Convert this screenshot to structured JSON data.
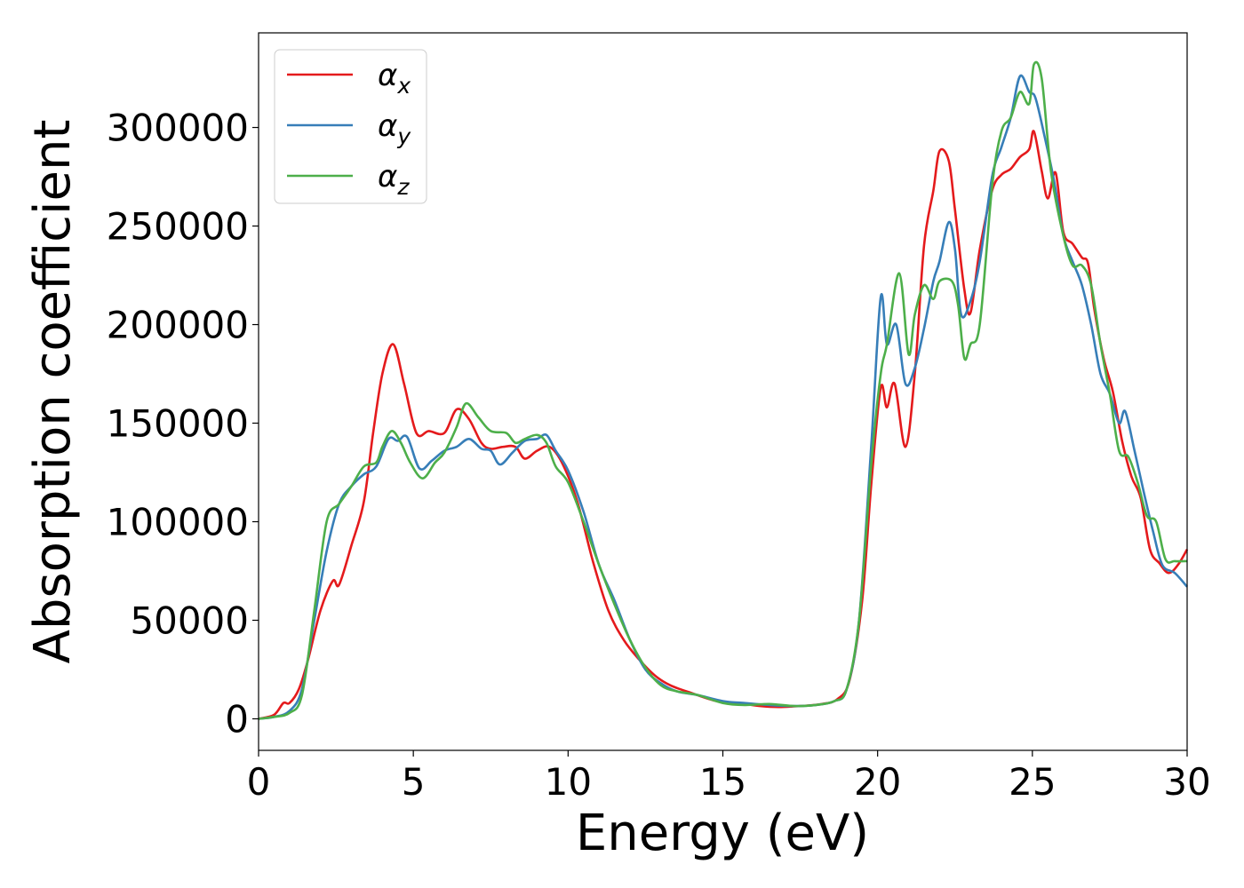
{
  "chart_data": {
    "type": "line",
    "xlabel": "Energy (eV)",
    "ylabel": "Absorption coefficient",
    "xlim": [
      0,
      30
    ],
    "ylim": [
      -16000,
      348000
    ],
    "x_ticks": [
      0,
      5,
      10,
      15,
      20,
      25,
      30
    ],
    "y_ticks": [
      0,
      50000,
      100000,
      150000,
      200000,
      250000,
      300000
    ],
    "grid": false,
    "legend_position": "top-left",
    "series": [
      {
        "name": "αx",
        "legend_main": "α",
        "legend_sub": "x",
        "color": "#e41a1c",
        "points": [
          [
            0,
            0
          ],
          [
            0.5,
            2000
          ],
          [
            0.8,
            8000
          ],
          [
            1.0,
            8000
          ],
          [
            1.3,
            15000
          ],
          [
            1.6,
            30000
          ],
          [
            2.0,
            55000
          ],
          [
            2.4,
            70000
          ],
          [
            2.6,
            68000
          ],
          [
            3.0,
            88000
          ],
          [
            3.4,
            110000
          ],
          [
            3.7,
            145000
          ],
          [
            4.0,
            175000
          ],
          [
            4.35,
            190000
          ],
          [
            4.7,
            170000
          ],
          [
            5.1,
            145000
          ],
          [
            5.5,
            146000
          ],
          [
            6.0,
            145000
          ],
          [
            6.4,
            157000
          ],
          [
            6.8,
            152000
          ],
          [
            7.2,
            140000
          ],
          [
            7.5,
            137000
          ],
          [
            7.9,
            138000
          ],
          [
            8.3,
            138000
          ],
          [
            8.6,
            132000
          ],
          [
            9.0,
            136000
          ],
          [
            9.4,
            138000
          ],
          [
            9.8,
            130000
          ],
          [
            10.3,
            110000
          ],
          [
            10.8,
            80000
          ],
          [
            11.3,
            55000
          ],
          [
            11.8,
            40000
          ],
          [
            12.3,
            30000
          ],
          [
            12.8,
            22000
          ],
          [
            13.3,
            17000
          ],
          [
            14.0,
            13000
          ],
          [
            14.8,
            9000
          ],
          [
            15.5,
            8000
          ],
          [
            16.2,
            6500
          ],
          [
            16.8,
            6000
          ],
          [
            17.5,
            6500
          ],
          [
            18.2,
            7500
          ],
          [
            18.7,
            10000
          ],
          [
            19.1,
            20000
          ],
          [
            19.5,
            60000
          ],
          [
            19.8,
            120000
          ],
          [
            20.1,
            168000
          ],
          [
            20.3,
            158000
          ],
          [
            20.55,
            170000
          ],
          [
            20.9,
            138000
          ],
          [
            21.2,
            175000
          ],
          [
            21.5,
            240000
          ],
          [
            21.8,
            268000
          ],
          [
            22.0,
            288000
          ],
          [
            22.3,
            283000
          ],
          [
            22.5,
            258000
          ],
          [
            22.8,
            218000
          ],
          [
            23.0,
            206000
          ],
          [
            23.3,
            238000
          ],
          [
            23.7,
            268000
          ],
          [
            24.0,
            276000
          ],
          [
            24.3,
            279000
          ],
          [
            24.6,
            285000
          ],
          [
            24.9,
            289000
          ],
          [
            25.05,
            298000
          ],
          [
            25.3,
            278000
          ],
          [
            25.5,
            264000
          ],
          [
            25.75,
            277000
          ],
          [
            26.0,
            247000
          ],
          [
            26.3,
            241000
          ],
          [
            26.6,
            234000
          ],
          [
            26.8,
            231000
          ],
          [
            27.0,
            208000
          ],
          [
            27.3,
            183000
          ],
          [
            27.6,
            166000
          ],
          [
            27.9,
            141000
          ],
          [
            28.2,
            123000
          ],
          [
            28.5,
            112000
          ],
          [
            28.8,
            86000
          ],
          [
            29.1,
            79000
          ],
          [
            29.4,
            74000
          ],
          [
            29.7,
            78000
          ],
          [
            30.0,
            86000
          ]
        ]
      },
      {
        "name": "αy",
        "legend_main": "α",
        "legend_sub": "y",
        "color": "#377eb8",
        "points": [
          [
            0,
            0
          ],
          [
            0.5,
            1000
          ],
          [
            1.0,
            4000
          ],
          [
            1.4,
            15000
          ],
          [
            1.8,
            50000
          ],
          [
            2.2,
            85000
          ],
          [
            2.6,
            109000
          ],
          [
            3.0,
            118000
          ],
          [
            3.4,
            124000
          ],
          [
            3.8,
            128000
          ],
          [
            4.2,
            142000
          ],
          [
            4.5,
            141000
          ],
          [
            4.8,
            143000
          ],
          [
            5.2,
            127000
          ],
          [
            5.6,
            131000
          ],
          [
            6.0,
            136000
          ],
          [
            6.4,
            138000
          ],
          [
            6.8,
            142000
          ],
          [
            7.2,
            137000
          ],
          [
            7.5,
            136000
          ],
          [
            7.8,
            129000
          ],
          [
            8.2,
            135000
          ],
          [
            8.6,
            141000
          ],
          [
            9.0,
            142000
          ],
          [
            9.3,
            144000
          ],
          [
            9.6,
            136000
          ],
          [
            10.0,
            126000
          ],
          [
            10.5,
            105000
          ],
          [
            11.0,
            78000
          ],
          [
            11.5,
            60000
          ],
          [
            12.0,
            40000
          ],
          [
            12.5,
            25000
          ],
          [
            13.0,
            18000
          ],
          [
            13.5,
            14000
          ],
          [
            14.2,
            12000
          ],
          [
            15.0,
            9000
          ],
          [
            15.7,
            8000
          ],
          [
            16.5,
            7000
          ],
          [
            17.3,
            6500
          ],
          [
            18.0,
            7000
          ],
          [
            18.6,
            9000
          ],
          [
            19.0,
            15000
          ],
          [
            19.4,
            50000
          ],
          [
            19.8,
            140000
          ],
          [
            20.1,
            214000
          ],
          [
            20.3,
            190000
          ],
          [
            20.6,
            200000
          ],
          [
            20.9,
            170000
          ],
          [
            21.2,
            178000
          ],
          [
            21.5,
            198000
          ],
          [
            21.8,
            222000
          ],
          [
            22.0,
            232000
          ],
          [
            22.3,
            252000
          ],
          [
            22.5,
            238000
          ],
          [
            22.7,
            205000
          ],
          [
            23.0,
            212000
          ],
          [
            23.3,
            232000
          ],
          [
            23.7,
            275000
          ],
          [
            24.0,
            290000
          ],
          [
            24.3,
            305000
          ],
          [
            24.6,
            326000
          ],
          [
            24.9,
            318000
          ],
          [
            25.1,
            315000
          ],
          [
            25.4,
            295000
          ],
          [
            25.7,
            273000
          ],
          [
            26.0,
            245000
          ],
          [
            26.3,
            232000
          ],
          [
            26.6,
            220000
          ],
          [
            26.9,
            200000
          ],
          [
            27.2,
            175000
          ],
          [
            27.5,
            165000
          ],
          [
            27.8,
            150000
          ],
          [
            28.0,
            156000
          ],
          [
            28.3,
            136000
          ],
          [
            28.6,
            115000
          ],
          [
            28.9,
            95000
          ],
          [
            29.2,
            78000
          ],
          [
            29.6,
            74000
          ],
          [
            30.0,
            67000
          ]
        ]
      },
      {
        "name": "αz",
        "legend_main": "α",
        "legend_sub": "z",
        "color": "#4daf4a",
        "points": [
          [
            0,
            0
          ],
          [
            0.5,
            1000
          ],
          [
            1.0,
            3000
          ],
          [
            1.4,
            12000
          ],
          [
            1.8,
            55000
          ],
          [
            2.2,
            100000
          ],
          [
            2.6,
            109000
          ],
          [
            3.0,
            118000
          ],
          [
            3.4,
            128000
          ],
          [
            3.8,
            130000
          ],
          [
            4.0,
            138000
          ],
          [
            4.3,
            146000
          ],
          [
            4.6,
            140000
          ],
          [
            4.9,
            130000
          ],
          [
            5.3,
            122000
          ],
          [
            5.7,
            130000
          ],
          [
            6.0,
            135000
          ],
          [
            6.4,
            148000
          ],
          [
            6.7,
            160000
          ],
          [
            7.1,
            153000
          ],
          [
            7.5,
            146000
          ],
          [
            8.0,
            145000
          ],
          [
            8.3,
            140000
          ],
          [
            8.6,
            142000
          ],
          [
            9.0,
            144000
          ],
          [
            9.3,
            140000
          ],
          [
            9.6,
            128000
          ],
          [
            10.0,
            120000
          ],
          [
            10.5,
            100000
          ],
          [
            11.0,
            78000
          ],
          [
            11.5,
            58000
          ],
          [
            12.0,
            40000
          ],
          [
            12.5,
            26000
          ],
          [
            13.0,
            17000
          ],
          [
            13.5,
            14000
          ],
          [
            14.2,
            12000
          ],
          [
            15.0,
            8000
          ],
          [
            15.7,
            7000
          ],
          [
            16.5,
            7500
          ],
          [
            17.3,
            6500
          ],
          [
            18.0,
            7000
          ],
          [
            18.6,
            9000
          ],
          [
            19.0,
            15000
          ],
          [
            19.4,
            50000
          ],
          [
            19.8,
            130000
          ],
          [
            20.1,
            175000
          ],
          [
            20.3,
            190000
          ],
          [
            20.7,
            226000
          ],
          [
            21.0,
            185000
          ],
          [
            21.2,
            205000
          ],
          [
            21.5,
            220000
          ],
          [
            21.8,
            213000
          ],
          [
            22.0,
            222000
          ],
          [
            22.4,
            222000
          ],
          [
            22.6,
            210000
          ],
          [
            22.8,
            183000
          ],
          [
            23.0,
            190000
          ],
          [
            23.3,
            200000
          ],
          [
            23.7,
            270000
          ],
          [
            24.0,
            298000
          ],
          [
            24.3,
            305000
          ],
          [
            24.6,
            318000
          ],
          [
            24.9,
            312000
          ],
          [
            25.05,
            332000
          ],
          [
            25.3,
            325000
          ],
          [
            25.6,
            278000
          ],
          [
            26.0,
            245000
          ],
          [
            26.3,
            230000
          ],
          [
            26.6,
            230000
          ],
          [
            26.9,
            220000
          ],
          [
            27.2,
            190000
          ],
          [
            27.5,
            165000
          ],
          [
            27.8,
            136000
          ],
          [
            28.1,
            133000
          ],
          [
            28.4,
            120000
          ],
          [
            28.7,
            103000
          ],
          [
            29.0,
            100000
          ],
          [
            29.3,
            81000
          ],
          [
            29.6,
            80000
          ],
          [
            30.0,
            80000
          ]
        ]
      }
    ]
  }
}
